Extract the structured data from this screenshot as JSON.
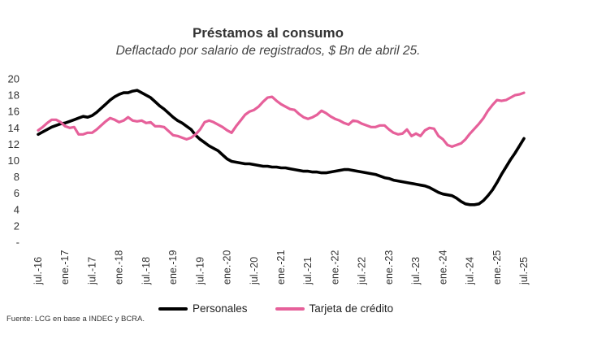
{
  "chart_data": {
    "type": "line",
    "title": "Préstamos al consumo",
    "subtitle": "Deflactado por salario de registrados, $ Bn de abril 25.",
    "ylim": [
      0,
      20
    ],
    "y_ticks": [
      "-",
      "2",
      "4",
      "6",
      "8",
      "10",
      "12",
      "14",
      "16",
      "18",
      "20"
    ],
    "x_tick_labels": [
      "jul.-16",
      "ene.-17",
      "jul.-17",
      "ene.-18",
      "jul.-18",
      "ene.-19",
      "jul.-19",
      "ene.-20",
      "jul.-20",
      "ene.-21",
      "jul.-21",
      "ene.-22",
      "jul.-22",
      "ene.-23",
      "jul.-23",
      "ene.-24",
      "jul.-24",
      "ene.-25",
      "jul.-25"
    ],
    "legend_position": "bottom",
    "grid": false,
    "x_months": [
      0,
      1,
      2,
      3,
      4,
      5,
      6,
      7,
      8,
      9,
      10,
      11,
      12,
      13,
      14,
      15,
      16,
      17,
      18,
      19,
      20,
      21,
      22,
      23,
      24,
      25,
      26,
      27,
      28,
      29,
      30,
      31,
      32,
      33,
      34,
      35,
      36,
      37,
      38,
      39,
      40,
      41,
      42,
      43,
      44,
      45,
      46,
      47,
      48,
      49,
      50,
      51,
      52,
      53,
      54,
      55,
      56,
      57,
      58,
      59,
      60,
      61,
      62,
      63,
      64,
      65,
      66,
      67,
      68,
      69,
      70,
      71,
      72,
      73,
      74,
      75,
      76,
      77,
      78,
      79,
      80,
      81,
      82,
      83,
      84,
      85,
      86,
      87,
      88,
      89,
      90,
      91,
      92,
      93,
      94,
      95,
      96,
      97,
      98,
      99,
      100,
      101,
      102,
      103,
      104,
      105,
      106,
      107,
      108
    ],
    "series": [
      {
        "name": "Personales",
        "color": "#000000",
        "values": [
          13.2,
          13.5,
          13.8,
          14.1,
          14.3,
          14.5,
          14.6,
          14.8,
          15.0,
          15.2,
          15.4,
          15.3,
          15.5,
          15.9,
          16.4,
          16.9,
          17.4,
          17.8,
          18.1,
          18.3,
          18.3,
          18.5,
          18.6,
          18.3,
          18.0,
          17.7,
          17.2,
          16.7,
          16.3,
          15.8,
          15.3,
          14.9,
          14.6,
          14.2,
          13.8,
          13.1,
          12.6,
          12.2,
          11.8,
          11.5,
          11.2,
          10.7,
          10.2,
          9.9,
          9.8,
          9.7,
          9.6,
          9.6,
          9.5,
          9.4,
          9.3,
          9.3,
          9.2,
          9.2,
          9.1,
          9.1,
          9.0,
          8.9,
          8.8,
          8.7,
          8.7,
          8.6,
          8.6,
          8.5,
          8.5,
          8.6,
          8.7,
          8.8,
          8.9,
          8.9,
          8.8,
          8.7,
          8.6,
          8.5,
          8.4,
          8.3,
          8.1,
          7.9,
          7.8,
          7.6,
          7.5,
          7.4,
          7.3,
          7.2,
          7.1,
          7.0,
          6.9,
          6.7,
          6.4,
          6.1,
          5.9,
          5.8,
          5.7,
          5.4,
          5.0,
          4.7,
          4.6,
          4.6,
          4.7,
          5.1,
          5.7,
          6.4,
          7.3,
          8.3,
          9.2,
          10.1,
          10.9,
          11.8,
          12.7
        ]
      },
      {
        "name": "Tarjeta de crédito",
        "color": "#e6609a",
        "values": [
          13.7,
          14.1,
          14.6,
          15.0,
          15.0,
          14.7,
          14.2,
          14.0,
          14.1,
          13.2,
          13.2,
          13.4,
          13.4,
          13.8,
          14.3,
          14.8,
          15.2,
          15.0,
          14.7,
          14.9,
          15.3,
          14.9,
          14.8,
          14.9,
          14.6,
          14.7,
          14.2,
          14.2,
          14.1,
          13.6,
          13.1,
          13.0,
          12.8,
          12.6,
          12.8,
          13.2,
          13.8,
          14.7,
          14.9,
          14.7,
          14.4,
          14.1,
          13.7,
          13.4,
          14.2,
          14.9,
          15.6,
          16.0,
          16.2,
          16.6,
          17.2,
          17.7,
          17.8,
          17.3,
          16.9,
          16.6,
          16.3,
          16.2,
          15.7,
          15.3,
          15.1,
          15.3,
          15.6,
          16.1,
          15.8,
          15.4,
          15.1,
          14.9,
          14.6,
          14.4,
          14.9,
          14.8,
          14.5,
          14.3,
          14.1,
          14.1,
          14.3,
          14.3,
          13.8,
          13.4,
          13.2,
          13.3,
          13.8,
          13.0,
          13.3,
          13.0,
          13.7,
          14.0,
          13.9,
          13.0,
          12.6,
          11.9,
          11.7,
          11.9,
          12.1,
          12.6,
          13.3,
          13.9,
          14.5,
          15.2,
          16.1,
          16.8,
          17.4,
          17.3,
          17.4,
          17.7,
          18.0,
          18.1,
          18.3
        ]
      }
    ]
  },
  "source": "Fuente: LCG en base a INDEC y BCRA."
}
